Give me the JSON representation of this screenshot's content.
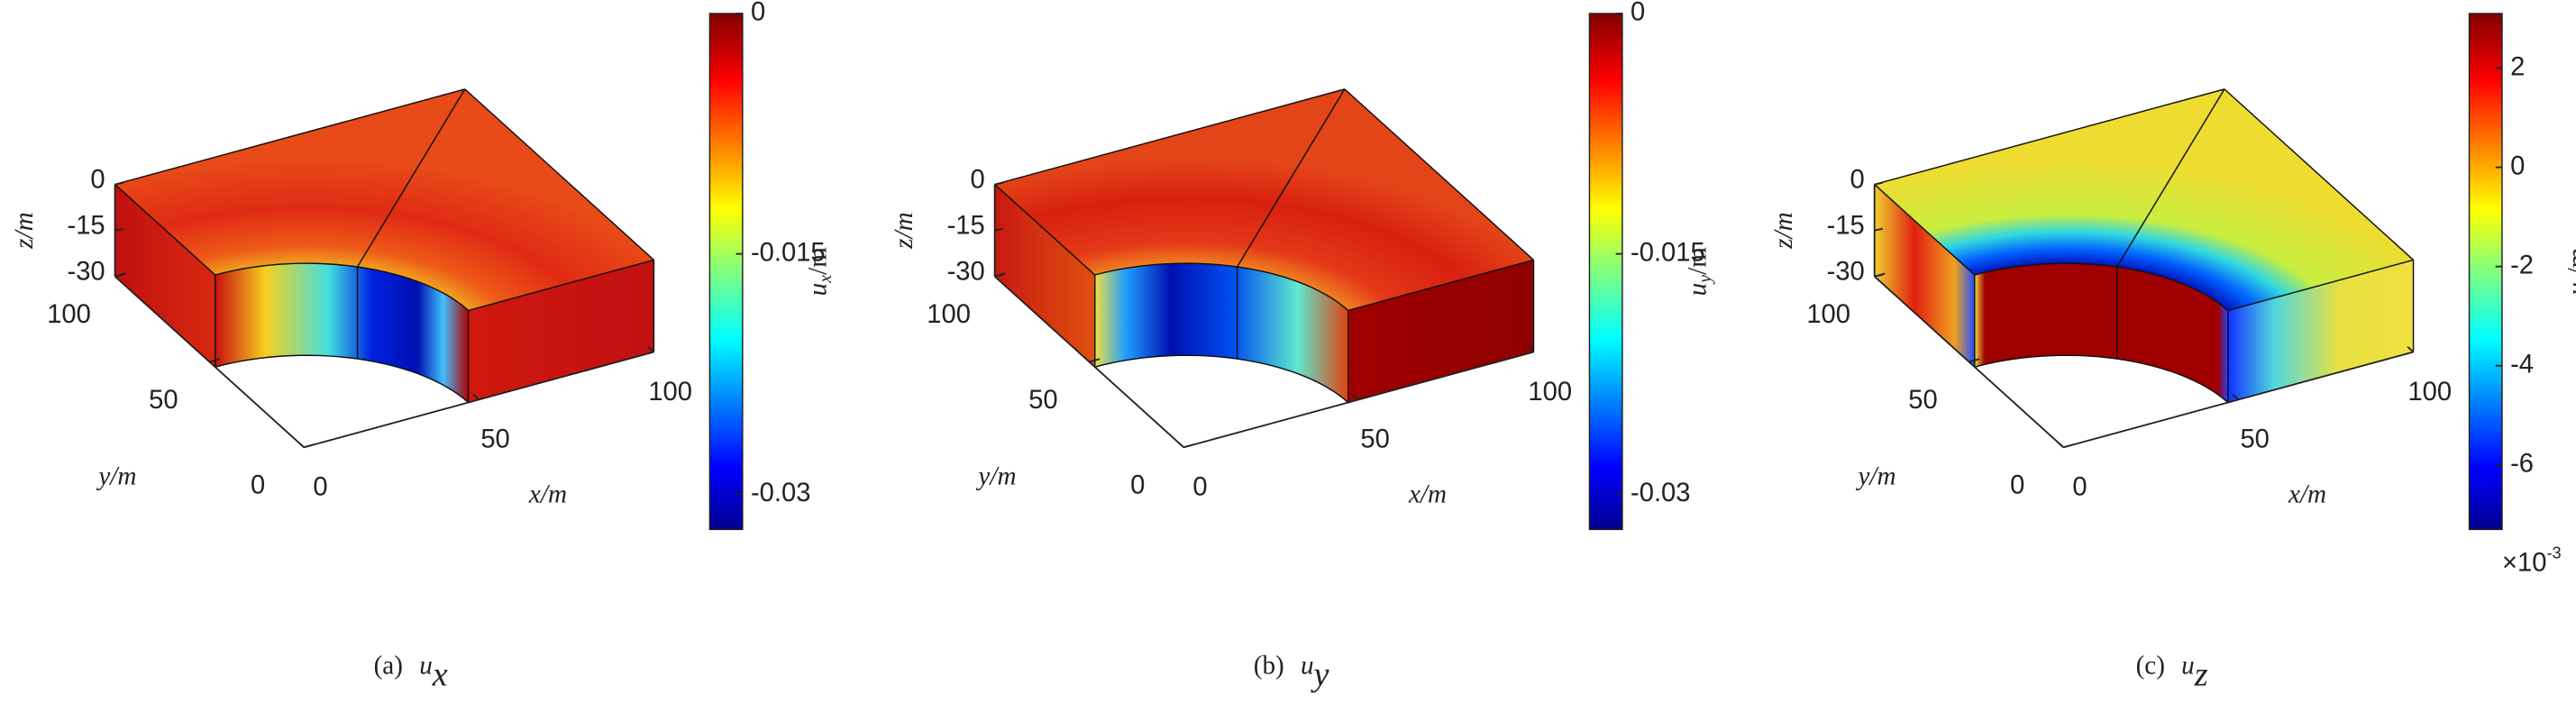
{
  "chart_data": [
    {
      "type": "surface3d",
      "caption": {
        "label": "(a)",
        "symbol": "u",
        "subscript": "x"
      },
      "xlabel": "x/m",
      "ylabel": "y/m",
      "zlabel": "z/m",
      "xlim": [
        0,
        100
      ],
      "ylim": [
        0,
        100
      ],
      "zlim": [
        -30,
        0
      ],
      "xticks": [
        0,
        50,
        100
      ],
      "yticks": [
        0,
        50,
        100
      ],
      "zticks": [
        -30,
        -15,
        0
      ],
      "colorbar": {
        "label": {
          "symbol": "u",
          "subscript": "x",
          "unit": "/m"
        },
        "clim": [
          -0.0322,
          0
        ],
        "ticks": [
          -0.03,
          -0.015,
          0
        ],
        "colormap": "jet"
      }
    },
    {
      "type": "surface3d",
      "caption": {
        "label": "(b)",
        "symbol": "u",
        "subscript": "y"
      },
      "xlabel": "x/m",
      "ylabel": "y/m",
      "zlabel": "z/m",
      "xlim": [
        0,
        100
      ],
      "ylim": [
        0,
        100
      ],
      "zlim": [
        -30,
        0
      ],
      "xticks": [
        0,
        50,
        100
      ],
      "yticks": [
        0,
        50,
        100
      ],
      "zticks": [
        -30,
        -15,
        0
      ],
      "colorbar": {
        "label": {
          "symbol": "u",
          "subscript": "y",
          "unit": "/m"
        },
        "clim": [
          -0.0322,
          0
        ],
        "ticks": [
          -0.03,
          -0.015,
          0
        ],
        "colormap": "jet"
      }
    },
    {
      "type": "surface3d",
      "caption": {
        "label": "(c)",
        "symbol": "u",
        "subscript": "z"
      },
      "xlabel": "x/m",
      "ylabel": "y/m",
      "zlabel": "z/m",
      "xlim": [
        0,
        100
      ],
      "ylim": [
        0,
        100
      ],
      "zlim": [
        -30,
        0
      ],
      "xticks": [
        0,
        50,
        100
      ],
      "yticks": [
        0,
        50,
        100
      ],
      "zticks": [
        -30,
        -15,
        0
      ],
      "colorbar": {
        "label": {
          "symbol": "u",
          "subscript": "z",
          "unit": "/m"
        },
        "clim": [
          -7.3,
          3.1
        ],
        "ticks": [
          -6,
          -4,
          -2,
          0,
          2
        ],
        "colormap": "jet",
        "multiplier": {
          "base": "×10",
          "exponent": "-3"
        }
      }
    }
  ]
}
